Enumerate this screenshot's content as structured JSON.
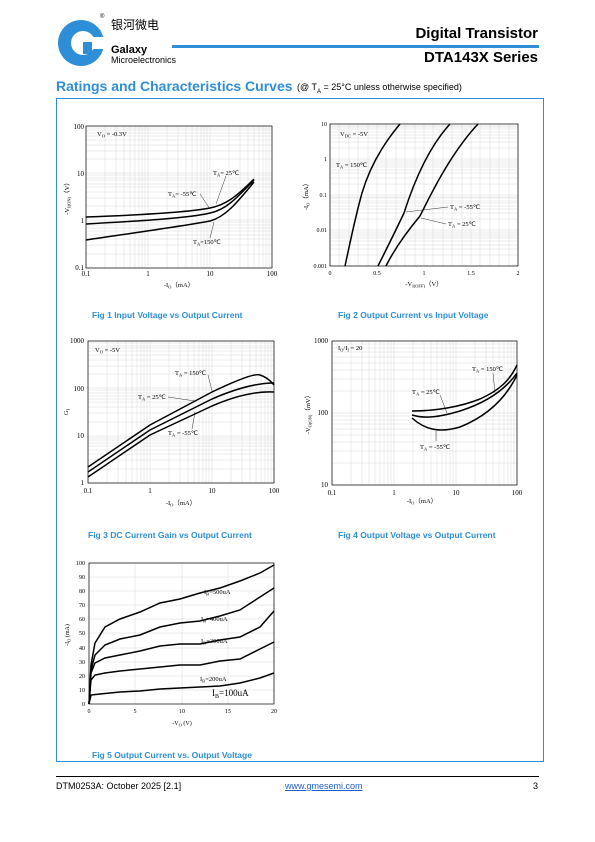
{
  "header": {
    "logo_cn": "银河微电",
    "logo_en1": "Galaxy",
    "logo_en2": "Microelectronics",
    "logo_reg": "®",
    "title": "Digital Transistor",
    "series": "DTA143X Series",
    "accent": "#2e8fd8"
  },
  "section": {
    "title": "Ratings and Characteristics Curves",
    "condition": "(@ TA = 25°C unless otherwise specified)"
  },
  "figs": {
    "fig1": {
      "caption": "Fig 1    Input Voltage vs Output Current",
      "cond": "VO = -0.3V",
      "xlabel": "-IO (mA)",
      "ylabel": "-VI(ON) (V)",
      "xticks": [
        "0.1",
        "1",
        "10",
        "100"
      ],
      "yticks": [
        "0.1",
        "1",
        "10",
        "100"
      ],
      "labels": [
        "TA = 25℃",
        "TA = -55℃",
        "TA =150℃"
      ]
    },
    "fig2": {
      "caption": "Fig 2    Output Current vs Input Voltage",
      "cond": "VDC = -5V",
      "xlabel": "-VI(OFF) (V)",
      "ylabel": "-IO (mA)",
      "xticks": [
        "0",
        "0.5",
        "1",
        "1.5",
        "2"
      ],
      "yticks": [
        "0.001",
        "0.01",
        "0.1",
        "1",
        "10"
      ],
      "labels": [
        "TA = 150℃",
        "TA = -55℃",
        "TA = 25℃"
      ]
    },
    "fig3": {
      "caption": "Fig 3    DC Current Gain vs Output Current",
      "cond": "VO = -5V",
      "xlabel": "-IO (mA)",
      "ylabel": "GI",
      "xticks": [
        "0.1",
        "1",
        "10",
        "100"
      ],
      "yticks": [
        "1",
        "10",
        "100",
        "1000"
      ],
      "labels": [
        "TA = 150℃",
        "TA = 25℃",
        "TA = -55℃"
      ]
    },
    "fig4": {
      "caption": "Fig 4    Output Voltage vs Output Current",
      "cond": "IO/II = 20",
      "xlabel": "-IO (mA)",
      "ylabel": "-VO(ON) (mV)",
      "xticks": [
        "0.1",
        "1",
        "10",
        "100"
      ],
      "yticks": [
        "10",
        "100",
        "1000"
      ],
      "labels": [
        "TA = 150℃",
        "TA = 25℃",
        "TA = -55℃"
      ]
    },
    "fig5": {
      "caption": "Fig 5    Output Current vs. Output Voltage",
      "xlabel": "-VO (V)",
      "ylabel": "-IO (mA)",
      "xticks": [
        "0",
        "5",
        "10",
        "15",
        "20"
      ],
      "yticks": [
        "0",
        "10",
        "20",
        "30",
        "40",
        "50",
        "60",
        "70",
        "80",
        "90",
        "100"
      ],
      "labels": [
        "IB=500uA",
        "IB=400uA",
        "IB=300uA",
        "IB=200uA",
        "IB=100uA"
      ]
    }
  },
  "footer": {
    "doc": "DTM0253A: October 2025 [2.1]",
    "url": "www.gmesemi.com",
    "page": "3"
  }
}
